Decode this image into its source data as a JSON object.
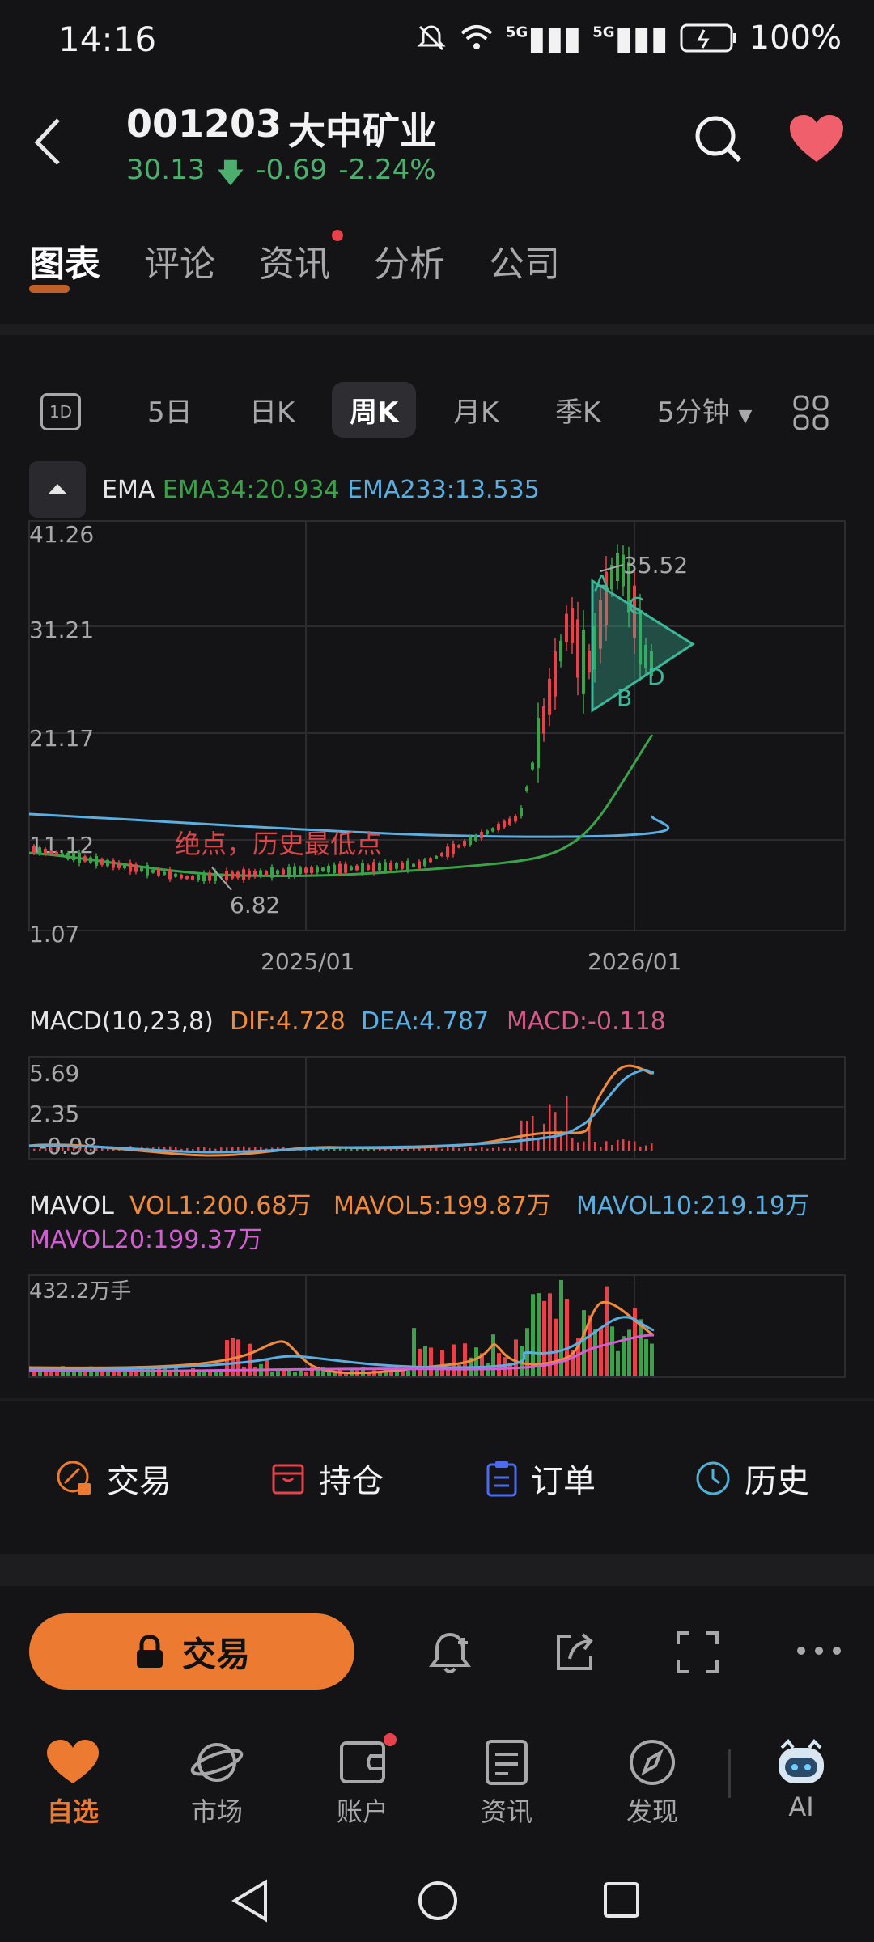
{
  "status_bar": {
    "time": "14:16",
    "battery": "100%",
    "network1": "5G",
    "network2": "5G"
  },
  "header": {
    "code": "001203",
    "name": "大中矿业",
    "price": "30.13",
    "change": "-0.69",
    "change_pct": "-2.24%",
    "down_color": "#4caf6e",
    "fav_color": "#f0606c"
  },
  "tabs": [
    {
      "label": "图表",
      "active": true
    },
    {
      "label": "评论"
    },
    {
      "label": "资讯",
      "badge": true
    },
    {
      "label": "分析"
    },
    {
      "label": "公司"
    }
  ],
  "periods": {
    "one_day": "1D",
    "items": [
      "5日",
      "日K",
      "周K",
      "月K",
      "季K"
    ],
    "active": "周K",
    "interval": "5分钟"
  },
  "ema_legend": {
    "name": "EMA",
    "ema34": "EMA34:20.934",
    "ema233": "EMA233:13.535"
  },
  "macd_legend": {
    "name": "MACD(10,23,8)",
    "dif": "DIF:4.728",
    "dea": "DEA:4.787",
    "macd": "MACD:-0.118"
  },
  "mavol_legend": {
    "name": "MAVOL",
    "vol1": "VOL1:200.68万",
    "mavol5": "MAVOL5:199.87万",
    "mavol10": "MAVOL10:219.19万",
    "mavol20": "MAVOL20:199.37万"
  },
  "chart_data": [
    {
      "type": "candlestick",
      "y_ticks": [
        "41.26",
        "31.21",
        "21.17",
        "11.12",
        "1.07"
      ],
      "ylim": [
        1.07,
        41.26
      ],
      "x_ticks": [
        "2025/01",
        "2026/01"
      ],
      "annotations": {
        "high_label": "35.52",
        "low_label": "6.82",
        "note": "绝点，历史最低点",
        "pattern_points": [
          "A",
          "B",
          "C",
          "D"
        ]
      },
      "series": [
        {
          "name": "EMA34",
          "color": "#3aa34a"
        },
        {
          "name": "EMA233",
          "color": "#5aaee0"
        }
      ]
    },
    {
      "type": "line",
      "y_ticks": [
        "5.69",
        "2.35",
        "-0.98"
      ],
      "ylim": [
        -0.98,
        5.69
      ],
      "series": [
        {
          "name": "DIF",
          "color": "#f08a3c"
        },
        {
          "name": "DEA",
          "color": "#5aaee0"
        },
        {
          "name": "MACD",
          "color": "#d45a8a"
        }
      ]
    },
    {
      "type": "bar",
      "y_ticks": [
        "432.2万手"
      ],
      "series": [
        {
          "name": "MAVOL5",
          "color": "#f08a3c"
        },
        {
          "name": "MAVOL10",
          "color": "#5aaee0"
        },
        {
          "name": "MAVOL20",
          "color": "#d060d0"
        }
      ]
    }
  ],
  "actions": [
    "交易",
    "持仓",
    "订单",
    "历史"
  ],
  "toolbar": {
    "trade": "交易"
  },
  "bottom_nav": [
    {
      "label": "自选",
      "active": true
    },
    {
      "label": "市场"
    },
    {
      "label": "账户",
      "badge": true
    },
    {
      "label": "资讯"
    },
    {
      "label": "发现"
    },
    {
      "label": "AI"
    }
  ]
}
